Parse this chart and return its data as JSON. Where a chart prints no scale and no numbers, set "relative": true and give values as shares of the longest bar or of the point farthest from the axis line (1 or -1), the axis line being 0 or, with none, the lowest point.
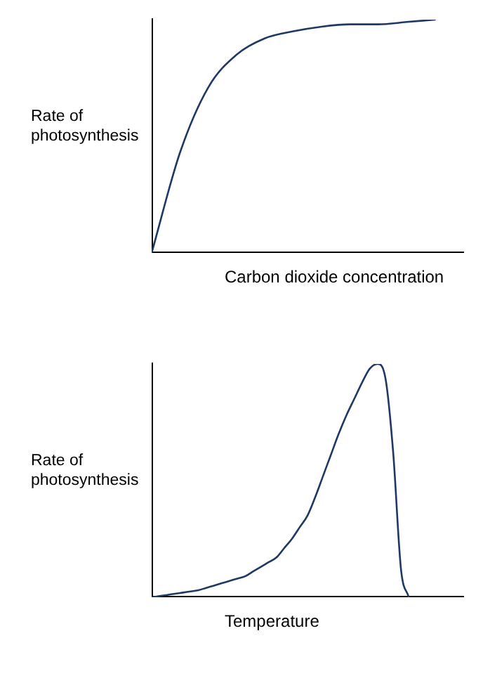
{
  "chart_data": [
    {
      "type": "line",
      "relative": true,
      "ylabel": "Rate of photosynthesis",
      "xlabel": "Carbon dioxide concentration",
      "categories": [
        null,
        null,
        null,
        null,
        null,
        null,
        null,
        null,
        null,
        null,
        null,
        null
      ],
      "grid": false,
      "legend": false,
      "marker": "none",
      "series": [
        {
          "color": "#1f3864",
          "values": [
            0,
            0.43,
            0.71,
            0.85,
            0.92,
            0.95,
            0.97,
            0.98,
            0.98,
            0.99,
            1,
            null
          ]
        }
      ]
    },
    {
      "type": "line",
      "relative": true,
      "ylabel": "Rate of photosynthesis",
      "xlabel": "Temperature",
      "categories": [
        null,
        null,
        null,
        null,
        null,
        null,
        null,
        null,
        null,
        null,
        null,
        null,
        null,
        null,
        null,
        null,
        null,
        null,
        null,
        null,
        null,
        null,
        null,
        null,
        null,
        null,
        null,
        null,
        null,
        null,
        null,
        null,
        null,
        null,
        null,
        null,
        null,
        null,
        null,
        null,
        null
      ],
      "grid": false,
      "legend": false,
      "marker": "none",
      "series": [
        {
          "color": "#1f3864",
          "values": [
            0,
            0.005,
            0.01,
            0.015,
            0.02,
            0.025,
            0.03,
            0.04,
            0.05,
            0.06,
            0.07,
            0.08,
            0.09,
            0.11,
            0.13,
            0.15,
            0.17,
            0.21,
            0.25,
            0.3,
            0.35,
            0.43,
            0.52,
            0.61,
            0.7,
            0.78,
            0.85,
            0.92,
            0.98,
            1,
            0.94,
            0.62,
            0.12,
            0,
            null,
            null,
            null,
            null,
            null,
            null,
            null
          ]
        }
      ]
    }
  ]
}
